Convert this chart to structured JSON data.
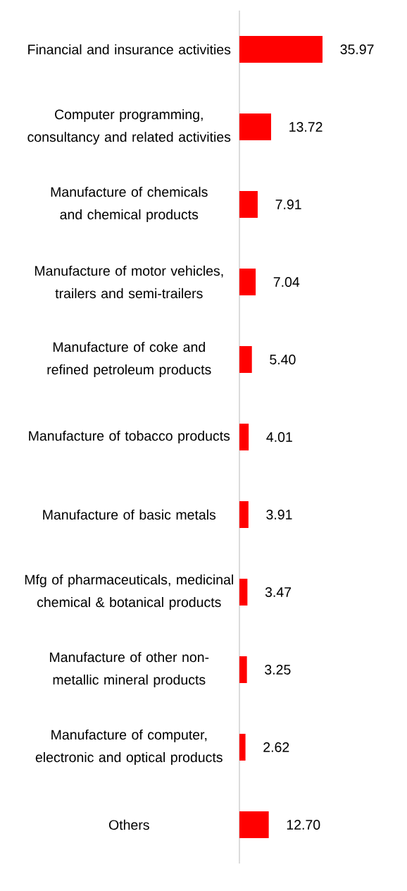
{
  "chart_data": {
    "type": "bar",
    "orientation": "horizontal",
    "categories": [
      "Financial and insurance activities",
      "Computer programming, consultancy and related activities",
      "Manufacture of chemicals and chemical products",
      "Manufacture of motor vehicles, trailers and semi-trailers",
      "Manufacture of coke and refined petroleum products",
      "Manufacture of tobacco products",
      "Manufacture of basic metals",
      "Mfg of pharmaceuticals, medicinal chemical & botanical products",
      "Manufacture of other non-metallic mineral products",
      "Manufacture of computer, electronic and optical products",
      "Others"
    ],
    "values": [
      35.97,
      13.72,
      7.91,
      7.04,
      5.4,
      4.01,
      3.91,
      3.47,
      3.25,
      2.62,
      12.7
    ],
    "value_labels": [
      "35.97",
      "13.72",
      "7.91",
      "7.04",
      "5.40",
      "4.01",
      "3.91",
      "3.47",
      "3.25",
      "2.62",
      "12.70"
    ],
    "color": "#ff0000"
  }
}
